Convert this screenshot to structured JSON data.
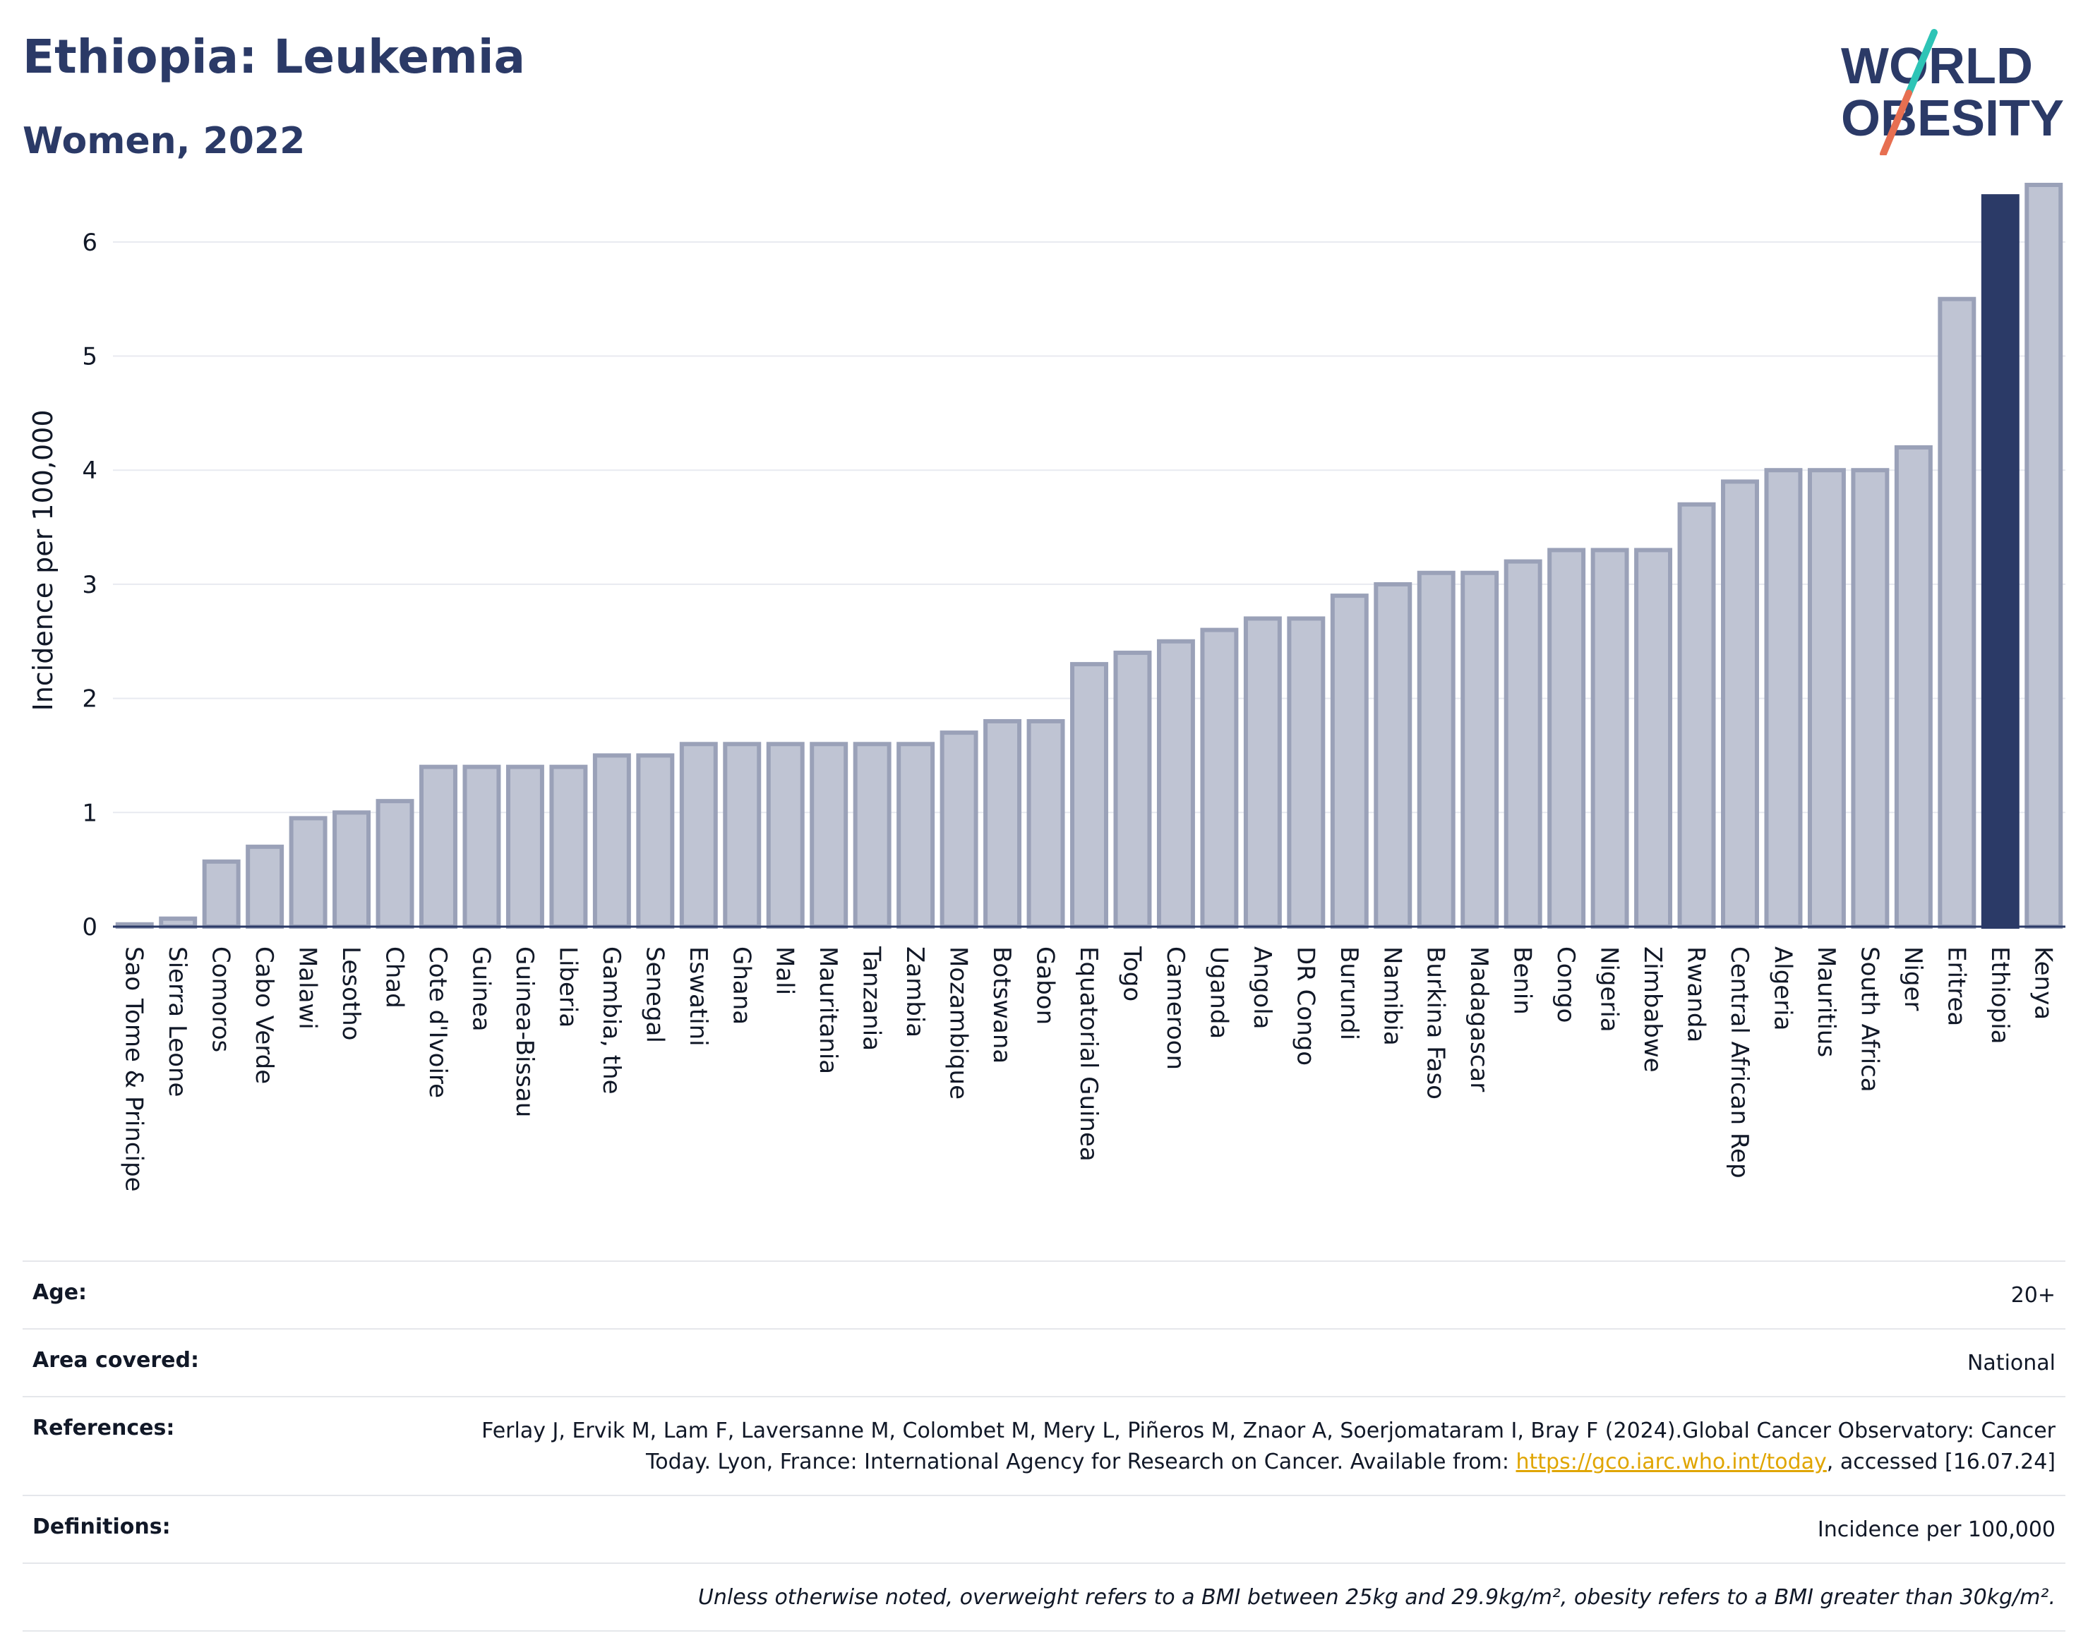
{
  "header": {
    "title": "Ethiopia: Leukemia",
    "subtitle": "Women, 2022",
    "logo_line1": "WORLD",
    "logo_line2": "OBESITY"
  },
  "colors": {
    "bar_default": "#bfc4d3",
    "bar_default_stroke": "#9aa1b8",
    "bar_highlight": "#2b3a67",
    "text_dark": "#2b3a67",
    "link": "#e0a500",
    "logo_teal": "#2ec4b6",
    "logo_coral": "#e76f51"
  },
  "chart_data": {
    "type": "bar",
    "title": "Ethiopia: Leukemia",
    "subtitle": "Women, 2022",
    "ylabel": "Incidence per 100,000",
    "xlabel": "",
    "ylim": [
      0,
      6.5
    ],
    "yticks": [
      0,
      1,
      2,
      3,
      4,
      5,
      6
    ],
    "grid": true,
    "highlight": "Ethiopia",
    "categories": [
      "Sao Tome & Principe",
      "Sierra Leone",
      "Comoros",
      "Cabo Verde",
      "Malawi",
      "Lesotho",
      "Chad",
      "Cote d'Ivoire",
      "Guinea",
      "Guinea-Bissau",
      "Liberia",
      "Gambia, the",
      "Senegal",
      "Eswatini",
      "Ghana",
      "Mali",
      "Mauritania",
      "Tanzania",
      "Zambia",
      "Mozambique",
      "Botswana",
      "Gabon",
      "Equatorial Guinea",
      "Togo",
      "Cameroon",
      "Uganda",
      "Angola",
      "DR Congo",
      "Burundi",
      "Namibia",
      "Burkina Faso",
      "Madagascar",
      "Benin",
      "Congo",
      "Nigeria",
      "Zimbabwe",
      "Rwanda",
      "Central African Rep",
      "Algeria",
      "Mauritius",
      "South Africa",
      "Niger",
      "Eritrea",
      "Ethiopia",
      "Kenya"
    ],
    "values": [
      0.02,
      0.07,
      0.57,
      0.7,
      0.95,
      1.0,
      1.1,
      1.4,
      1.4,
      1.4,
      1.4,
      1.5,
      1.5,
      1.6,
      1.6,
      1.6,
      1.6,
      1.6,
      1.6,
      1.7,
      1.8,
      1.8,
      2.3,
      2.4,
      2.5,
      2.6,
      2.7,
      2.7,
      2.9,
      3.0,
      3.1,
      3.1,
      3.2,
      3.3,
      3.3,
      3.3,
      3.7,
      3.9,
      4.0,
      4.0,
      4.0,
      4.2,
      5.5,
      6.4,
      6.5
    ]
  },
  "meta": {
    "age_label": "Age:",
    "age_value": "20+",
    "area_label": "Area covered:",
    "area_value": "National",
    "references_label": "References:",
    "references_text_1": "Ferlay J, Ervik M, Lam F, Laversanne M, Colombet M, Mery L, Piñeros M, Znaor A, Soerjomataram I, Bray F (2024).Global Cancer Observatory: Cancer Today. Lyon, France: International Agency for Research on Cancer. Available from: ",
    "references_link": "https://gco.iarc.who.int/today",
    "references_text_2": ", accessed [16.07.24]",
    "definitions_label": "Definitions:",
    "definitions_value": "Incidence per 100,000",
    "note": "Unless otherwise noted, overweight refers to a BMI between 25kg and 29.9kg/m², obesity refers to a BMI greater than 30kg/m²."
  }
}
